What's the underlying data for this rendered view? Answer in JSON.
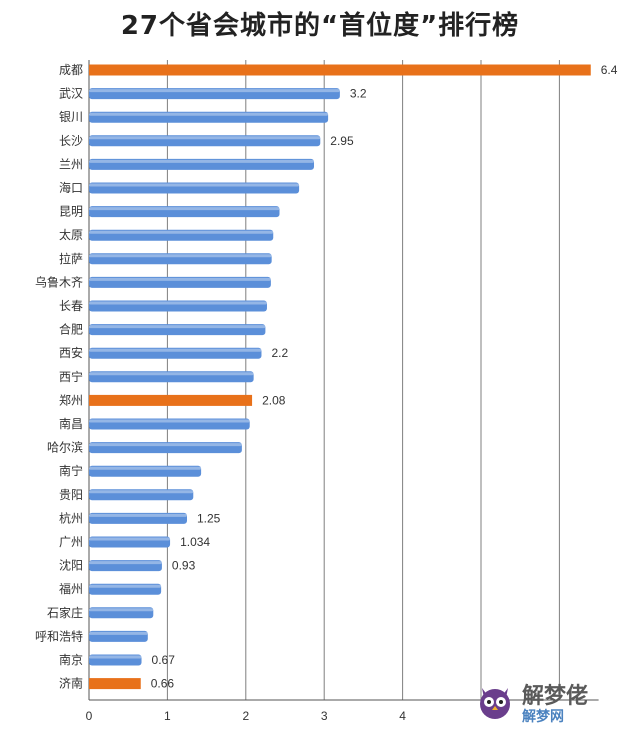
{
  "title": "27个省会城市的“首位度”排行榜",
  "colors": {
    "blue": "#5b8fd9",
    "orange": "#e8711a",
    "grid": "#7f7f7f",
    "axis": "#555555"
  },
  "watermark": {
    "text_main": "解梦佬",
    "text_sub": "解梦网",
    "icon": "owl-logo-icon"
  },
  "chart_data": {
    "type": "bar",
    "orientation": "horizontal",
    "title": "27个省会城市的“首位度”排行榜",
    "categories": [
      "成都",
      "武汉",
      "银川",
      "长沙",
      "兰州",
      "海口",
      "昆明",
      "太原",
      "拉萨",
      "乌鲁木齐",
      "长春",
      "合肥",
      "西安",
      "西宁",
      "郑州",
      "南昌",
      "哈尔滨",
      "南宁",
      "贵阳",
      "杭州",
      "广州",
      "沈阳",
      "福州",
      "石家庄",
      "呼和浩特",
      "南京",
      "济南"
    ],
    "values": [
      6.4,
      3.2,
      3.05,
      2.95,
      2.87,
      2.68,
      2.43,
      2.35,
      2.33,
      2.32,
      2.27,
      2.25,
      2.2,
      2.1,
      2.08,
      2.05,
      1.95,
      1.43,
      1.33,
      1.25,
      1.034,
      0.93,
      0.92,
      0.82,
      0.75,
      0.67,
      0.66
    ],
    "data_labels": [
      "6.4",
      "3.2",
      "",
      "2.95",
      "",
      "",
      "",
      "",
      "",
      "",
      "",
      "",
      "2.2",
      "",
      "2.08",
      "",
      "",
      "",
      "",
      "1.25",
      "1.034",
      "0.93",
      "",
      "",
      "",
      "0.67",
      "0.66"
    ],
    "highlight": [
      "成都",
      "郑州",
      "济南"
    ],
    "xlim": [
      0,
      6.5
    ],
    "xticks": [
      "0",
      "1",
      "2",
      "3",
      "4"
    ],
    "grid": true
  }
}
